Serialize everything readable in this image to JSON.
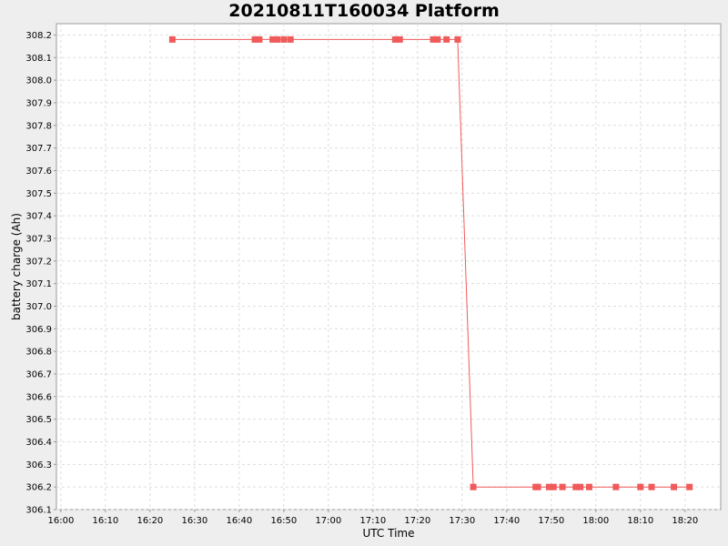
{
  "chart_data": {
    "type": "line",
    "title": "20210811T160034 Platform",
    "xlabel": "UTC Time",
    "ylabel": "battery charge (Ah)",
    "xlim": [
      "15:59",
      "18:28"
    ],
    "ylim": [
      306.1,
      308.25
    ],
    "x_ticks": [
      "16:00",
      "16:10",
      "16:20",
      "16:30",
      "16:40",
      "16:50",
      "17:00",
      "17:10",
      "17:20",
      "17:30",
      "17:40",
      "17:50",
      "18:00",
      "18:10",
      "18:20"
    ],
    "y_ticks": [
      "306.1",
      "306.2",
      "306.3",
      "306.4",
      "306.5",
      "306.6",
      "306.7",
      "306.8",
      "306.9",
      "307.0",
      "307.1",
      "307.2",
      "307.3",
      "307.4",
      "307.5",
      "307.6",
      "307.7",
      "307.8",
      "307.9",
      "308.0",
      "308.1",
      "308.2"
    ],
    "grid": true,
    "legend": "none",
    "series": [
      {
        "color": "#f05a5a",
        "marker": "square",
        "points": [
          {
            "x": "16:25",
            "y": 308.18
          },
          {
            "x": "16:43:30",
            "y": 308.18
          },
          {
            "x": "16:44:30",
            "y": 308.18
          },
          {
            "x": "16:47:30",
            "y": 308.18
          },
          {
            "x": "16:48:30",
            "y": 308.18
          },
          {
            "x": "16:50",
            "y": 308.18
          },
          {
            "x": "16:51:30",
            "y": 308.18
          },
          {
            "x": "17:15",
            "y": 308.18
          },
          {
            "x": "17:16",
            "y": 308.18
          },
          {
            "x": "17:23:30",
            "y": 308.18
          },
          {
            "x": "17:24:30",
            "y": 308.18
          },
          {
            "x": "17:26:30",
            "y": 308.18
          },
          {
            "x": "17:29",
            "y": 308.18
          },
          {
            "x": "17:32:30",
            "y": 306.2
          },
          {
            "x": "17:46:30",
            "y": 306.2
          },
          {
            "x": "17:47",
            "y": 306.2
          },
          {
            "x": "17:49:30",
            "y": 306.2
          },
          {
            "x": "17:50:30",
            "y": 306.2
          },
          {
            "x": "17:52:30",
            "y": 306.2
          },
          {
            "x": "17:55:30",
            "y": 306.2
          },
          {
            "x": "17:56:30",
            "y": 306.2
          },
          {
            "x": "17:58:30",
            "y": 306.2
          },
          {
            "x": "18:04:30",
            "y": 306.2
          },
          {
            "x": "18:10",
            "y": 306.2
          },
          {
            "x": "18:12:30",
            "y": 306.2
          },
          {
            "x": "18:17:30",
            "y": 306.2
          },
          {
            "x": "18:21",
            "y": 306.2
          }
        ]
      }
    ]
  }
}
